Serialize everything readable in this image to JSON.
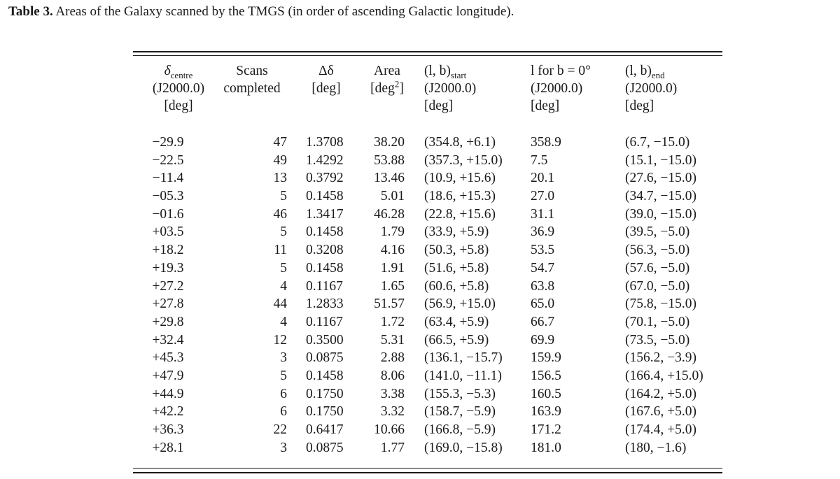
{
  "caption": {
    "label": "Table 3.",
    "text": "Areas of the Galaxy scanned by the TMGS (in order of ascending Galactic longitude)."
  },
  "headers": [
    {
      "main": "δ",
      "sub": "centre",
      "sup": "",
      "after": "",
      "line2": "(J2000.0)",
      "line3": "[deg]"
    },
    {
      "main": "Scans",
      "sub": "",
      "sup": "",
      "after": "",
      "line2": "completed",
      "line3": ""
    },
    {
      "main": "Δδ",
      "sub": "",
      "sup": "",
      "after": "",
      "line2": "[deg]",
      "line3": ""
    },
    {
      "main": "Area",
      "sub": "",
      "sup": "",
      "after": "",
      "line2": "[deg",
      "line2_sup": "2",
      "line2_after": "]",
      "line3": ""
    },
    {
      "main": "(l, b)",
      "sub": "start",
      "sup": "",
      "after": "",
      "line2": "(J2000.0)",
      "line3": "[deg]"
    },
    {
      "main": "l for b = 0°",
      "sub": "",
      "sup": "",
      "after": "",
      "line2": "(J2000.0)",
      "line3": "[deg]"
    },
    {
      "main": "(l, b)",
      "sub": "end",
      "sup": "",
      "after": "",
      "line2": "(J2000.0)",
      "line3": "[deg]"
    }
  ],
  "rows": [
    [
      "−29.9",
      "47",
      "1.3708",
      "38.20",
      "(354.8, +6.1)",
      "358.9",
      "(6.7, −15.0)"
    ],
    [
      "−22.5",
      "49",
      "1.4292",
      "53.88",
      "(357.3, +15.0)",
      "7.5",
      "(15.1, −15.0)"
    ],
    [
      "−11.4",
      "13",
      "0.3792",
      "13.46",
      "(10.9, +15.6)",
      "20.1",
      "(27.6, −15.0)"
    ],
    [
      "−05.3",
      "5",
      "0.1458",
      "5.01",
      "(18.6, +15.3)",
      "27.0",
      "(34.7, −15.0)"
    ],
    [
      "−01.6",
      "46",
      "1.3417",
      "46.28",
      "(22.8, +15.6)",
      "31.1",
      "(39.0, −15.0)"
    ],
    [
      "+03.5",
      "5",
      "0.1458",
      "1.79",
      "(33.9, +5.9)",
      "36.9",
      "(39.5, −5.0)"
    ],
    [
      "+18.2",
      "11",
      "0.3208",
      "4.16",
      "(50.3, +5.8)",
      "53.5",
      "(56.3, −5.0)"
    ],
    [
      "+19.3",
      "5",
      "0.1458",
      "1.91",
      "(51.6, +5.8)",
      "54.7",
      "(57.6, −5.0)"
    ],
    [
      "+27.2",
      "4",
      "0.1167",
      "1.65",
      "(60.6, +5.8)",
      "63.8",
      "(67.0, −5.0)"
    ],
    [
      "+27.8",
      "44",
      "1.2833",
      "51.57",
      "(56.9, +15.0)",
      "65.0",
      "(75.8, −15.0)"
    ],
    [
      "+29.8",
      "4",
      "0.1167",
      "1.72",
      "(63.4, +5.9)",
      "66.7",
      "(70.1, −5.0)"
    ],
    [
      "+32.4",
      "12",
      "0.3500",
      "5.31",
      "(66.5, +5.9)",
      "69.9",
      "(73.5, −5.0)"
    ],
    [
      "+45.3",
      "3",
      "0.0875",
      "2.88",
      "(136.1, −15.7)",
      "159.9",
      "(156.2, −3.9)"
    ],
    [
      "+47.9",
      "5",
      "0.1458",
      "8.06",
      "(141.0, −11.1)",
      "156.5",
      "(166.4, +15.0)"
    ],
    [
      "+44.9",
      "6",
      "0.1750",
      "3.38",
      "(155.3, −5.3)",
      "160.5",
      "(164.2, +5.0)"
    ],
    [
      "+42.2",
      "6",
      "0.1750",
      "3.32",
      "(158.7, −5.9)",
      "163.9",
      "(167.6, +5.0)"
    ],
    [
      "+36.3",
      "22",
      "0.6417",
      "10.66",
      "(166.8, −5.9)",
      "171.2",
      "(174.4, +5.0)"
    ],
    [
      "+28.1",
      "3",
      "0.0875",
      "1.77",
      "(169.0, −15.8)",
      "181.0",
      "(180, −1.6)"
    ]
  ]
}
